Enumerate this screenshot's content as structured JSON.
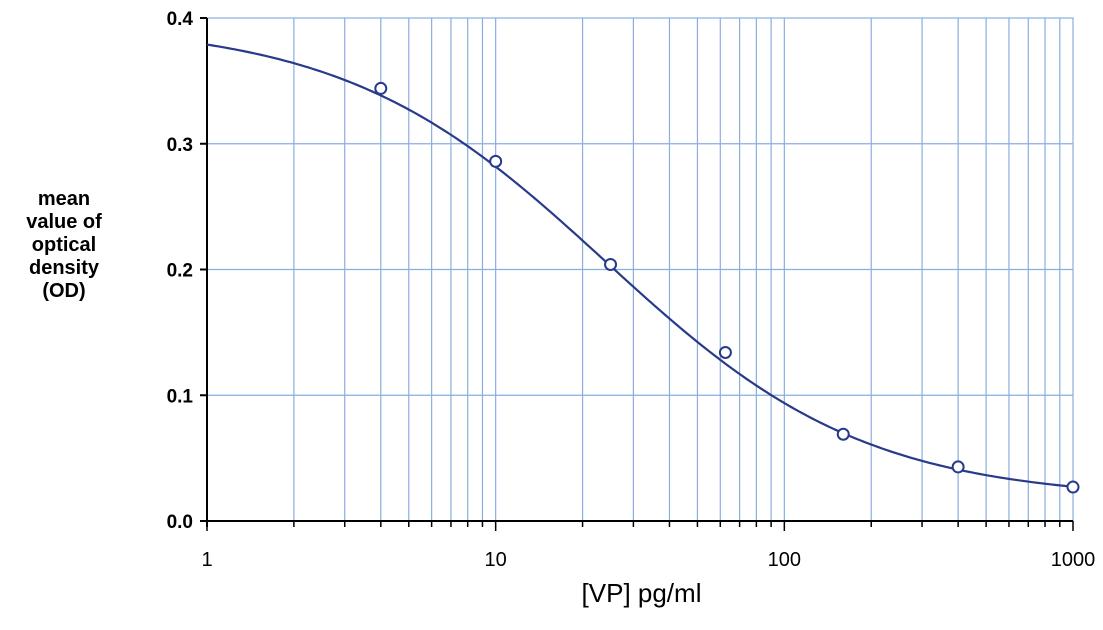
{
  "chart_data": {
    "type": "scatter",
    "scale_x": "log",
    "xlim": [
      1,
      1000
    ],
    "ylim": [
      0,
      0.4
    ],
    "xlabel": "[VP] pg/ml",
    "ylabel_lines": [
      "mean",
      "value of",
      "optical",
      "density",
      "(OD)"
    ],
    "x_ticks": [
      {
        "value": 1,
        "label": "1"
      },
      {
        "value": 10,
        "label": "10"
      },
      {
        "value": 100,
        "label": "100"
      },
      {
        "value": 1000,
        "label": "1000"
      }
    ],
    "y_ticks": [
      {
        "value": 0.0,
        "label": "0.0"
      },
      {
        "value": 0.1,
        "label": "0.1"
      },
      {
        "value": 0.2,
        "label": "0.2"
      },
      {
        "value": 0.3,
        "label": "0.3"
      },
      {
        "value": 0.4,
        "label": "0.4"
      }
    ],
    "grid": true,
    "series": [
      {
        "points": [
          {
            "x": 4,
            "y": 0.344
          },
          {
            "x": 10,
            "y": 0.286
          },
          {
            "x": 25,
            "y": 0.204
          },
          {
            "x": 62.5,
            "y": 0.134
          },
          {
            "x": 160,
            "y": 0.069
          },
          {
            "x": 400,
            "y": 0.043
          },
          {
            "x": 1000,
            "y": 0.027
          }
        ],
        "fit_curve": {
          "model": "4PL",
          "top": 0.396,
          "bottom": 0.017,
          "ec50": 24,
          "hill": 0.96
        }
      }
    ],
    "colors": {
      "curve": "#283a8a",
      "markers": "#283a8a",
      "grid": "#8aaee0",
      "axis": "#000000"
    }
  }
}
